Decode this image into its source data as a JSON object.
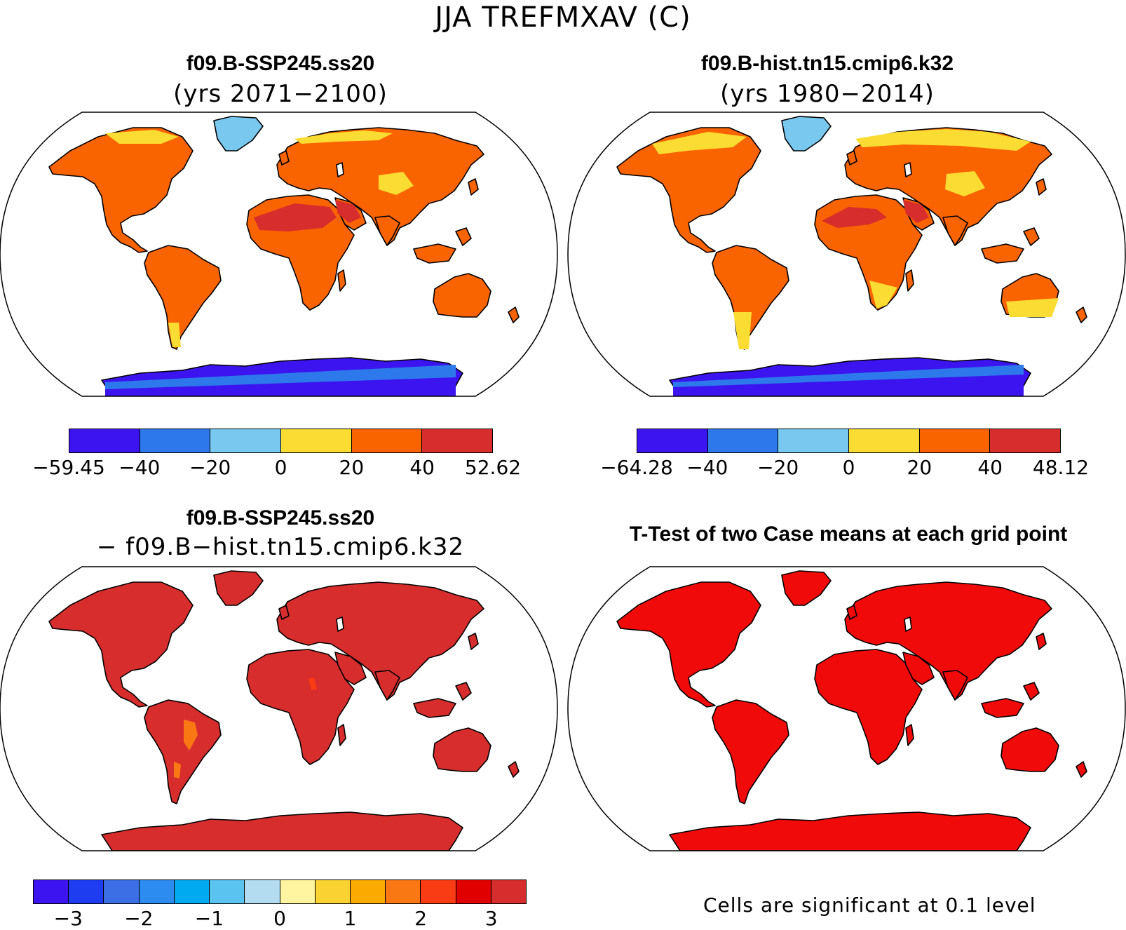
{
  "title": "JJA TREFMXAV (C)",
  "panels": {
    "top_left": {
      "title": "f09.B-SSP245.ss20",
      "subtitle": "(yrs 2071−2100)",
      "colorbar_labels": [
        "−59.45",
        "−40",
        "−20",
        "0",
        "20",
        "40",
        "52.62"
      ]
    },
    "top_right": {
      "title": "f09.B-hist.tn15.cmip6.k32",
      "subtitle": "(yrs 1980−2014)",
      "colorbar_labels": [
        "−64.28",
        "−40",
        "−20",
        "0",
        "20",
        "40",
        "48.12"
      ]
    },
    "bottom_left": {
      "title": "f09.B-SSP245.ss20",
      "subtitle": "− f09.B−hist.tn15.cmip6.k32",
      "colorbar_labels": [
        "−3",
        "−2",
        "−1",
        "0",
        "1",
        "2",
        "3"
      ]
    },
    "bottom_right": {
      "title": "T-Test of two Case means at each grid point",
      "note": "Cells are significant at 0.1 level"
    }
  },
  "colors": {
    "abs_scale": [
      "#3c14f0",
      "#2d78eb",
      "#78c8f0",
      "#fadc32",
      "#fa6400",
      "#d72d2d"
    ],
    "diff_scale": [
      "#3c14f0",
      "#1e3cf0",
      "#3c6ee6",
      "#2d8cf0",
      "#00aaf0",
      "#5ac3f0",
      "#b4dcf0",
      "#fff5a0",
      "#fad232",
      "#faaa00",
      "#fa7814",
      "#fa3c14",
      "#e10000",
      "#d72d2d"
    ],
    "ttest_fill": "#f00a0a"
  },
  "chart_data": [
    {
      "type": "map",
      "title": "f09.B-SSP245.ss20",
      "subtitle": "(yrs 2071-2100)",
      "levels": [
        -59.45,
        -40,
        -20,
        0,
        20,
        40,
        52.62
      ]
    },
    {
      "type": "map",
      "title": "f09.B-hist.tn15.cmip6.k32",
      "subtitle": "(yrs 1980-2014)",
      "levels": [
        -64.28,
        -40,
        -20,
        0,
        20,
        40,
        48.12
      ]
    },
    {
      "type": "map",
      "title": "f09.B-SSP245.ss20",
      "subtitle": "- f09.B-hist.tn15.cmip6.k32",
      "levels": [
        -3,
        -2,
        -1,
        0,
        1,
        2,
        3
      ]
    },
    {
      "type": "map",
      "title": "T-Test of two Case means at each grid point",
      "note": "Cells are significant at 0.1 level"
    }
  ]
}
